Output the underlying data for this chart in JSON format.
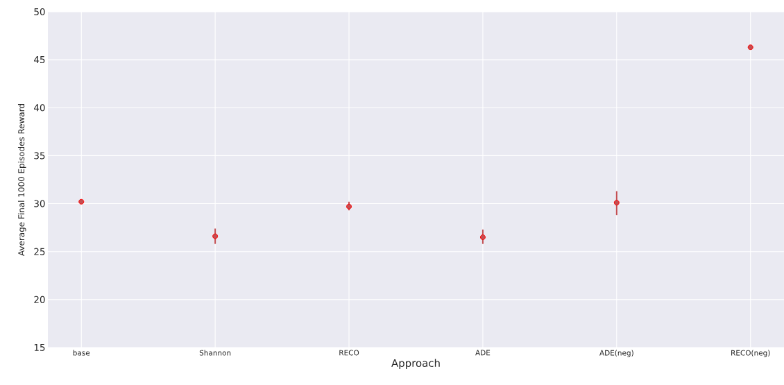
{
  "chart_data": {
    "type": "scatter",
    "xlabel": "Approach",
    "ylabel": "Average Final 1000 Episodes Reward",
    "categories": [
      "base",
      "Shannon",
      "RECO",
      "ADE",
      "ADE(neg)",
      "RECO(neg)"
    ],
    "series": [
      {
        "color": "#c44e52",
        "values": [
          30.2,
          26.6,
          29.7,
          26.5,
          30.1,
          46.3
        ],
        "errors": [
          null,
          [
            25.8,
            27.4
          ],
          [
            29.3,
            30.2
          ],
          [
            25.8,
            27.3
          ],
          [
            28.8,
            31.3
          ],
          null
        ]
      }
    ],
    "ylim": [
      15,
      50
    ],
    "yticks": [
      15,
      20,
      25,
      30,
      35,
      40,
      45,
      50
    ],
    "grid": true,
    "marker": "circle"
  }
}
